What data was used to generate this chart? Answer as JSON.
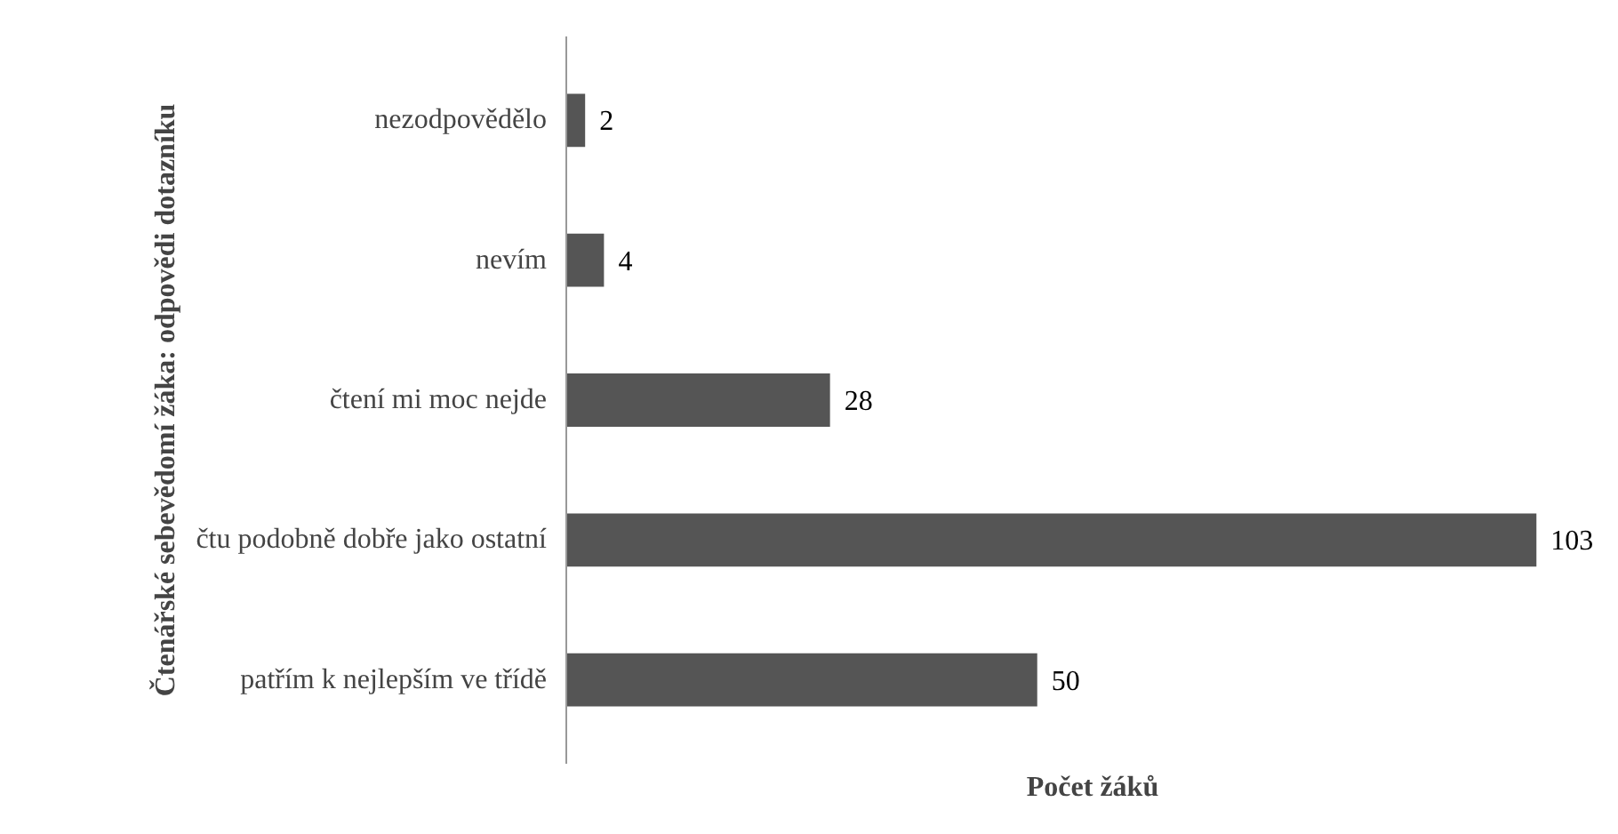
{
  "chart_data": {
    "type": "bar",
    "orientation": "horizontal",
    "xlabel": "Počet žáků",
    "ylabel": "Čtenářské sebevědomí žáka: odpovědi dotazníku",
    "categories": [
      "nezodpovědělo",
      "nevím",
      "čtení mi moc nejde",
      "čtu podobně dobře jako ostatní",
      "patřím k nejlepším ve třídě"
    ],
    "values": [
      2,
      4,
      28,
      103,
      50
    ],
    "color": "#555555",
    "data_labels": true
  }
}
